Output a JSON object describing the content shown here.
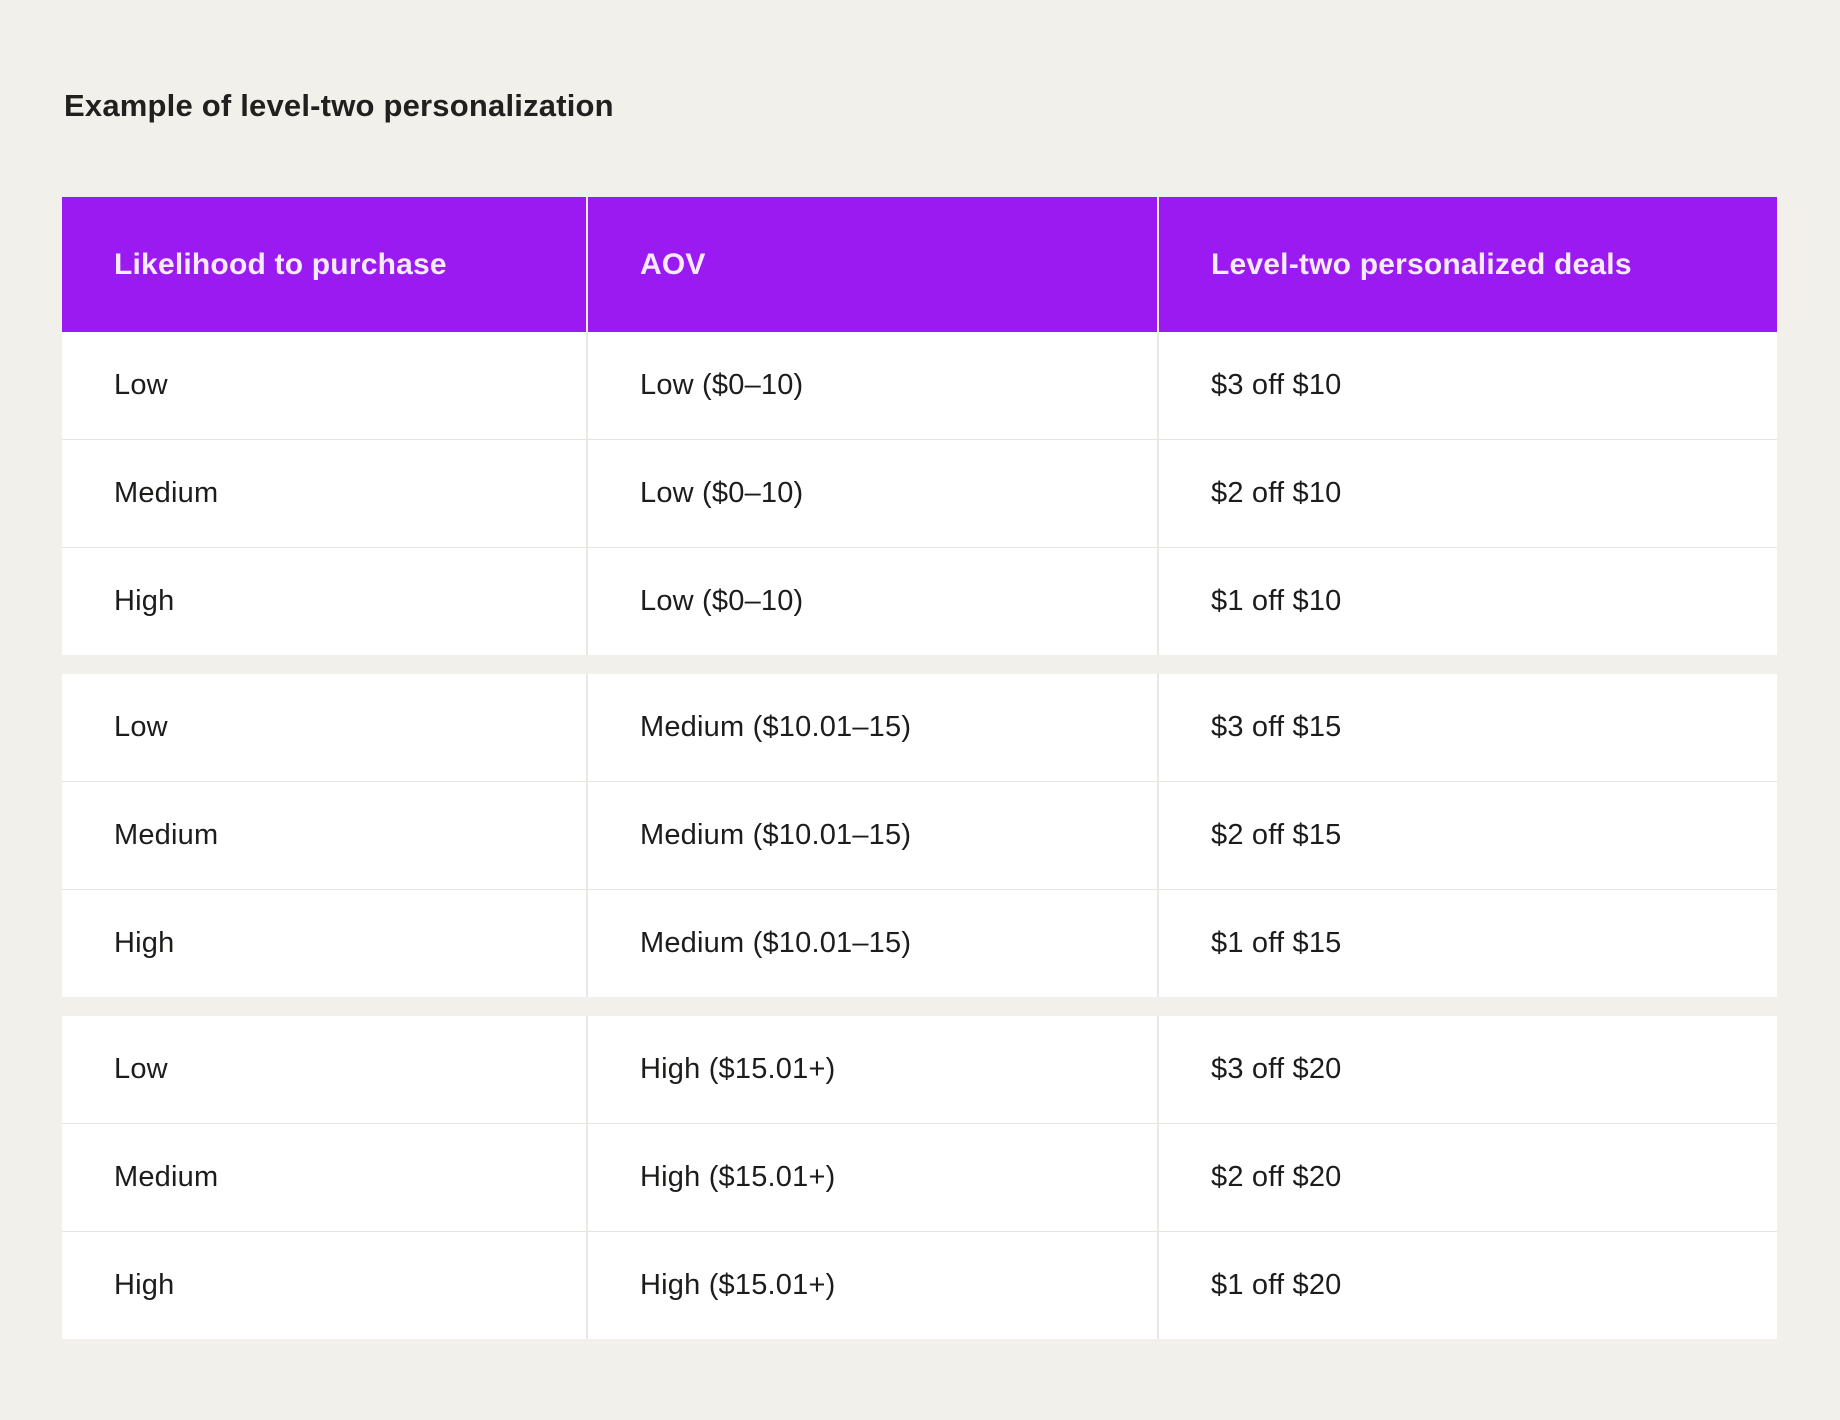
{
  "title": "Example of level-two personalization",
  "colors": {
    "page_background": "#F1F0EB",
    "header_background": "#9A1AF1",
    "header_text": "#F6EAFD",
    "body_text": "#1D1C1B",
    "row_background": "#FFFFFF",
    "row_border": "#E5E4DF"
  },
  "chart_data": {
    "type": "table",
    "title": "Example of level-two personalization",
    "columns": [
      "Likelihood to purchase",
      "AOV",
      "Level-two personalized deals"
    ],
    "rows": [
      [
        "Low",
        "Low ($0–10)",
        "$3 off $10"
      ],
      [
        "Medium",
        "Low ($0–10)",
        "$2 off $10"
      ],
      [
        "High",
        "Low ($0–10)",
        "$1 off $10"
      ],
      [
        "Low",
        "Medium ($10.01–15)",
        "$3 off $15"
      ],
      [
        "Medium",
        "Medium ($10.01–15)",
        "$2 off $15"
      ],
      [
        "High",
        "Medium ($10.01–15)",
        "$1 off $15"
      ],
      [
        "Low",
        "High ($15.01+)",
        "$3 off $20"
      ],
      [
        "Medium",
        "High ($15.01+)",
        "$2 off $20"
      ],
      [
        "High",
        "High ($15.01+)",
        "$1 off $20"
      ]
    ],
    "row_groups": [
      [
        0,
        1,
        2
      ],
      [
        3,
        4,
        5
      ],
      [
        6,
        7,
        8
      ]
    ],
    "layout": "grouped rows separated by background-colored gaps; no outer border; vertical dividers between columns"
  }
}
